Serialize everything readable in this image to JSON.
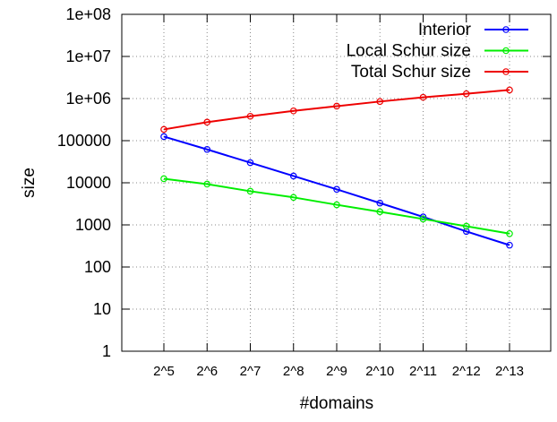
{
  "chart_data": {
    "type": "line",
    "xlabel": "#domains",
    "ylabel": "size",
    "x_scale": "log2",
    "y_scale": "log10",
    "categories": [
      "2^5",
      "2^6",
      "2^7",
      "2^8",
      "2^9",
      "2^10",
      "2^11",
      "2^12",
      "2^13"
    ],
    "y_ticks": [
      "1",
      "10",
      "100",
      "1000",
      "10000",
      "100000",
      "1e+06",
      "1e+07",
      "1e+08"
    ],
    "ylim": [
      1,
      100000000
    ],
    "grid": true,
    "legend_position": "top-right",
    "series": [
      {
        "name": "Interior",
        "color": "#0000ff",
        "values": [
          125000,
          62000,
          30000,
          14500,
          7000,
          3300,
          1550,
          700,
          330
        ]
      },
      {
        "name": "Local Schur size",
        "color": "#00ee00",
        "values": [
          12500,
          9300,
          6300,
          4500,
          3000,
          2050,
          1380,
          930,
          620
        ]
      },
      {
        "name": "Total Schur size",
        "color": "#ee0000",
        "values": [
          185000,
          275000,
          380000,
          510000,
          660000,
          850000,
          1070000,
          1300000,
          1600000
        ]
      }
    ]
  }
}
